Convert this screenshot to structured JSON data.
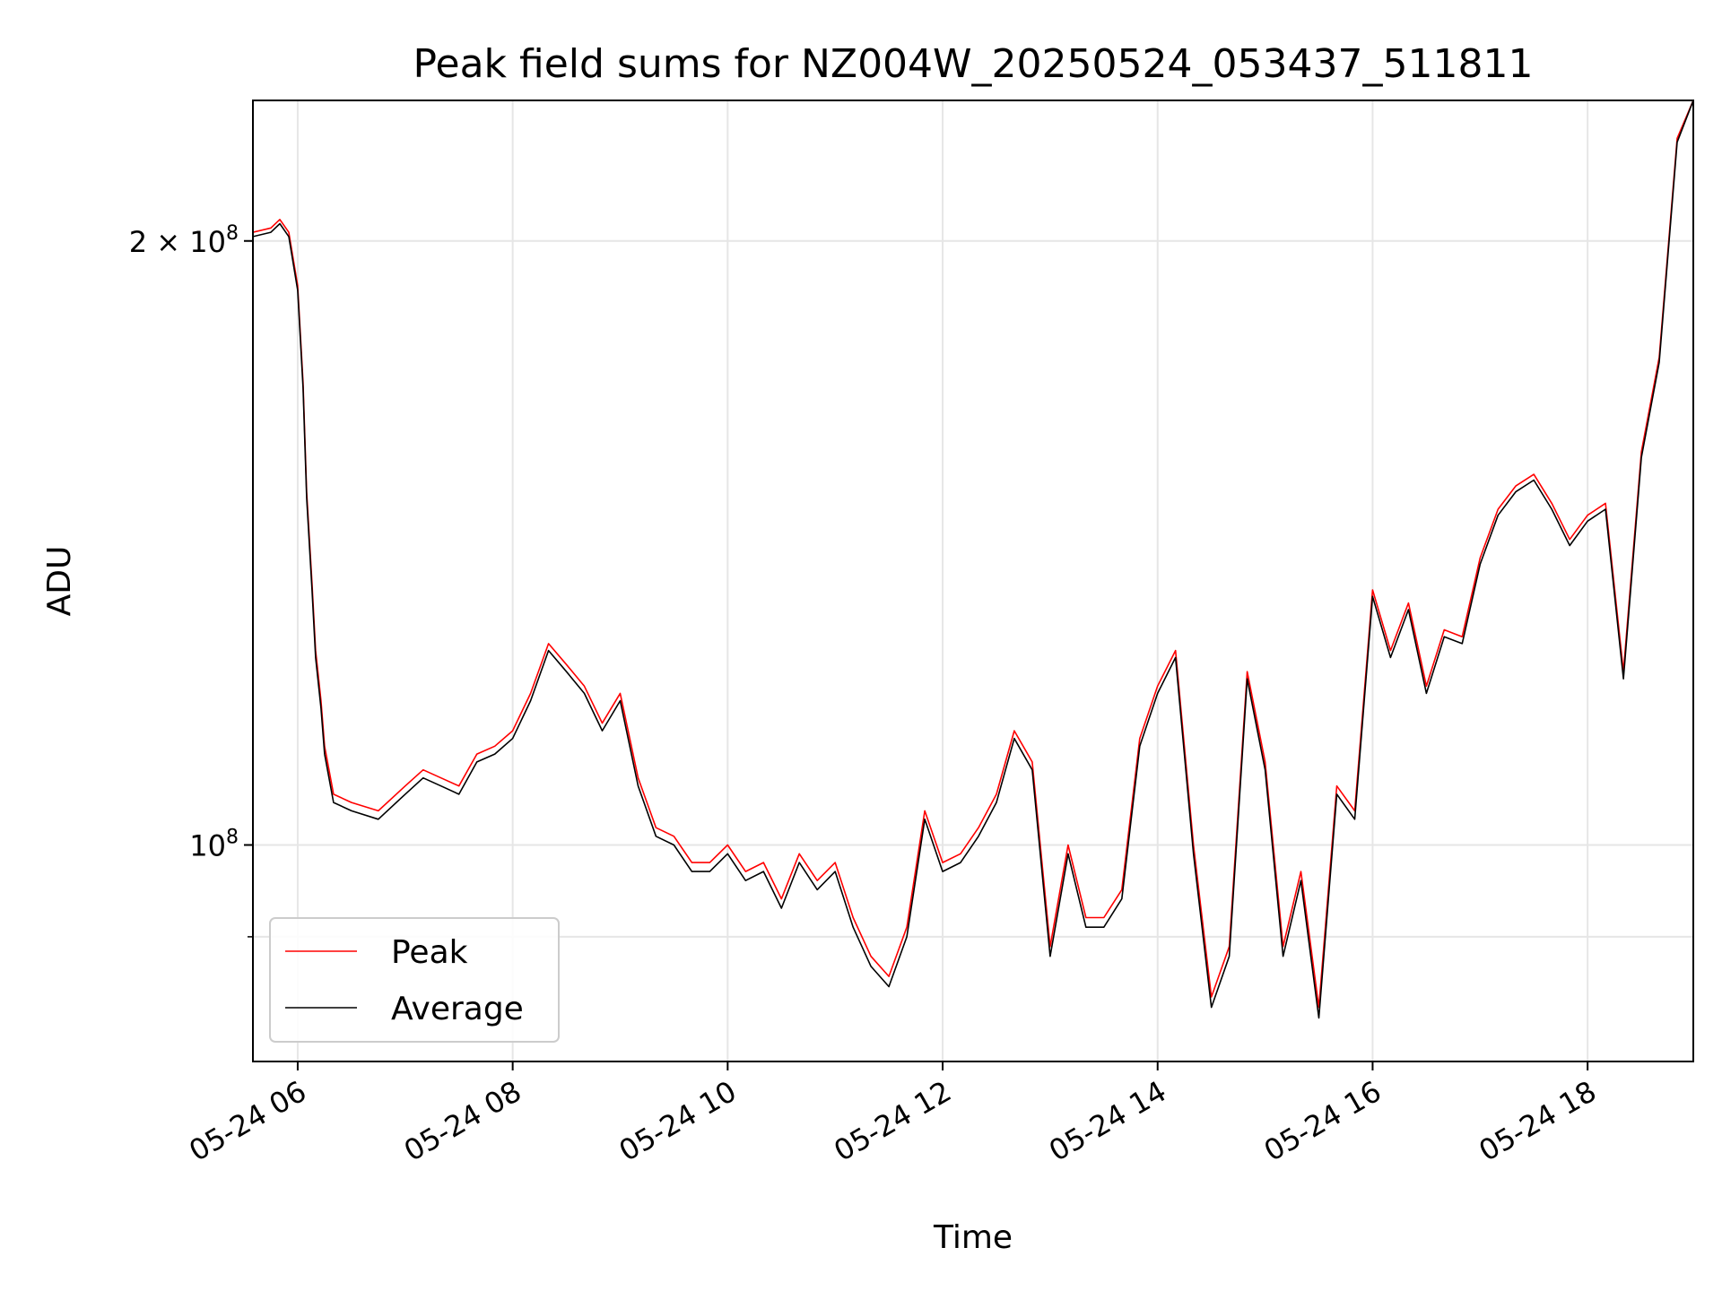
{
  "chart_data": {
    "type": "line",
    "title": "Peak field sums for NZ004W_20250524_053437_511811",
    "xlabel": "Time",
    "ylabel": "ADU",
    "yscale": "log",
    "xlim": [
      "2025-05-24 05:35",
      "2025-05-24 18:59"
    ],
    "ylim": [
      78000000,
      235000000
    ],
    "x_ticks": [
      "05-24 06",
      "05-24 08",
      "05-24 10",
      "05-24 12",
      "05-24 14",
      "05-24 16",
      "05-24 18"
    ],
    "y_ticks": [
      {
        "value": 100000000,
        "label": "10^8"
      },
      {
        "value": 200000000,
        "label": "2 × 10^8"
      }
    ],
    "grid": true,
    "legend": "lower-left",
    "colors": {
      "peak": "#ff0000",
      "average": "#000000"
    },
    "series": [
      {
        "name": "Peak",
        "color": "#ff0000",
        "x": [
          "05:35",
          "05:45",
          "05:50",
          "05:55",
          "06:00",
          "06:03",
          "06:05",
          "06:08",
          "06:10",
          "06:13",
          "06:15",
          "06:20",
          "06:30",
          "06:45",
          "07:00",
          "07:10",
          "07:20",
          "07:30",
          "07:40",
          "07:50",
          "08:00",
          "08:10",
          "08:20",
          "08:30",
          "08:40",
          "08:50",
          "09:00",
          "09:10",
          "09:20",
          "09:30",
          "09:40",
          "09:50",
          "10:00",
          "10:10",
          "10:20",
          "10:30",
          "10:40",
          "10:50",
          "11:00",
          "11:10",
          "11:20",
          "11:30",
          "11:40",
          "11:50",
          "12:00",
          "12:10",
          "12:20",
          "12:30",
          "12:40",
          "12:50",
          "13:00",
          "13:10",
          "13:20",
          "13:30",
          "13:40",
          "13:50",
          "14:00",
          "14:10",
          "14:20",
          "14:30",
          "14:40",
          "14:50",
          "15:00",
          "15:10",
          "15:20",
          "15:30",
          "15:40",
          "15:50",
          "16:00",
          "16:10",
          "16:20",
          "16:30",
          "16:40",
          "16:50",
          "17:00",
          "17:10",
          "17:20",
          "17:30",
          "17:40",
          "17:50",
          "18:00",
          "18:10",
          "18:20",
          "18:30",
          "18:40",
          "18:50",
          "18:59"
        ],
        "values": [
          202000000,
          203000000,
          205000000,
          202000000,
          190000000,
          170000000,
          150000000,
          135000000,
          125000000,
          118000000,
          112000000,
          106000000,
          105000000,
          104000000,
          107000000,
          109000000,
          108000000,
          107000000,
          111000000,
          112000000,
          114000000,
          119000000,
          126000000,
          123000000,
          120000000,
          115000000,
          119000000,
          108000000,
          102000000,
          101000000,
          98000000,
          98000000,
          100000000,
          97000000,
          98000000,
          94000000,
          99000000,
          96000000,
          98000000,
          92000000,
          88000000,
          86000000,
          91000000,
          104000000,
          98000000,
          99000000,
          102000000,
          106000000,
          114000000,
          110000000,
          89000000,
          100000000,
          92000000,
          92000000,
          95000000,
          113000000,
          120000000,
          125000000,
          100000000,
          84000000,
          89000000,
          122000000,
          110000000,
          89000000,
          97000000,
          83000000,
          107000000,
          104000000,
          134000000,
          125000000,
          132000000,
          120000000,
          128000000,
          127000000,
          139000000,
          147000000,
          151000000,
          153000000,
          148000000,
          142000000,
          146000000,
          148000000,
          122000000,
          157000000,
          175000000,
          225000000,
          235000000
        ]
      },
      {
        "name": "Average",
        "color": "#000000",
        "x": [
          "05:35",
          "05:45",
          "05:50",
          "05:55",
          "06:00",
          "06:03",
          "06:05",
          "06:08",
          "06:10",
          "06:13",
          "06:15",
          "06:20",
          "06:30",
          "06:45",
          "07:00",
          "07:10",
          "07:20",
          "07:30",
          "07:40",
          "07:50",
          "08:00",
          "08:10",
          "08:20",
          "08:30",
          "08:40",
          "08:50",
          "09:00",
          "09:10",
          "09:20",
          "09:30",
          "09:40",
          "09:50",
          "10:00",
          "10:10",
          "10:20",
          "10:30",
          "10:40",
          "10:50",
          "11:00",
          "11:10",
          "11:20",
          "11:30",
          "11:40",
          "11:50",
          "12:00",
          "12:10",
          "12:20",
          "12:30",
          "12:40",
          "12:50",
          "13:00",
          "13:10",
          "13:20",
          "13:30",
          "13:40",
          "13:50",
          "14:00",
          "14:10",
          "14:20",
          "14:30",
          "14:40",
          "14:50",
          "15:00",
          "15:10",
          "15:20",
          "15:30",
          "15:40",
          "15:50",
          "16:00",
          "16:10",
          "16:20",
          "16:30",
          "16:40",
          "16:50",
          "17:00",
          "17:10",
          "17:20",
          "17:30",
          "17:40",
          "17:50",
          "18:00",
          "18:10",
          "18:20",
          "18:30",
          "18:40",
          "18:50",
          "18:59"
        ],
        "values": [
          201000000,
          202000000,
          204000000,
          201000000,
          189000000,
          169000000,
          149000000,
          134000000,
          124000000,
          117000000,
          111000000,
          105000000,
          104000000,
          103000000,
          106000000,
          108000000,
          107000000,
          106000000,
          110000000,
          111000000,
          113000000,
          118000000,
          125000000,
          122000000,
          119000000,
          114000000,
          118000000,
          107000000,
          101000000,
          100000000,
          97000000,
          97000000,
          99000000,
          96000000,
          97000000,
          93000000,
          98000000,
          95000000,
          97000000,
          91000000,
          87000000,
          85000000,
          90000000,
          103000000,
          97000000,
          98000000,
          101000000,
          105000000,
          113000000,
          109000000,
          88000000,
          99000000,
          91000000,
          91000000,
          94000000,
          112000000,
          119000000,
          124000000,
          99000000,
          83000000,
          88000000,
          121000000,
          109000000,
          88000000,
          96000000,
          82000000,
          106000000,
          103000000,
          133000000,
          124000000,
          131000000,
          119000000,
          127000000,
          126000000,
          138000000,
          146000000,
          150000000,
          152000000,
          147000000,
          141000000,
          145000000,
          147000000,
          121000000,
          156000000,
          174000000,
          224000000,
          235000000
        ]
      }
    ]
  }
}
